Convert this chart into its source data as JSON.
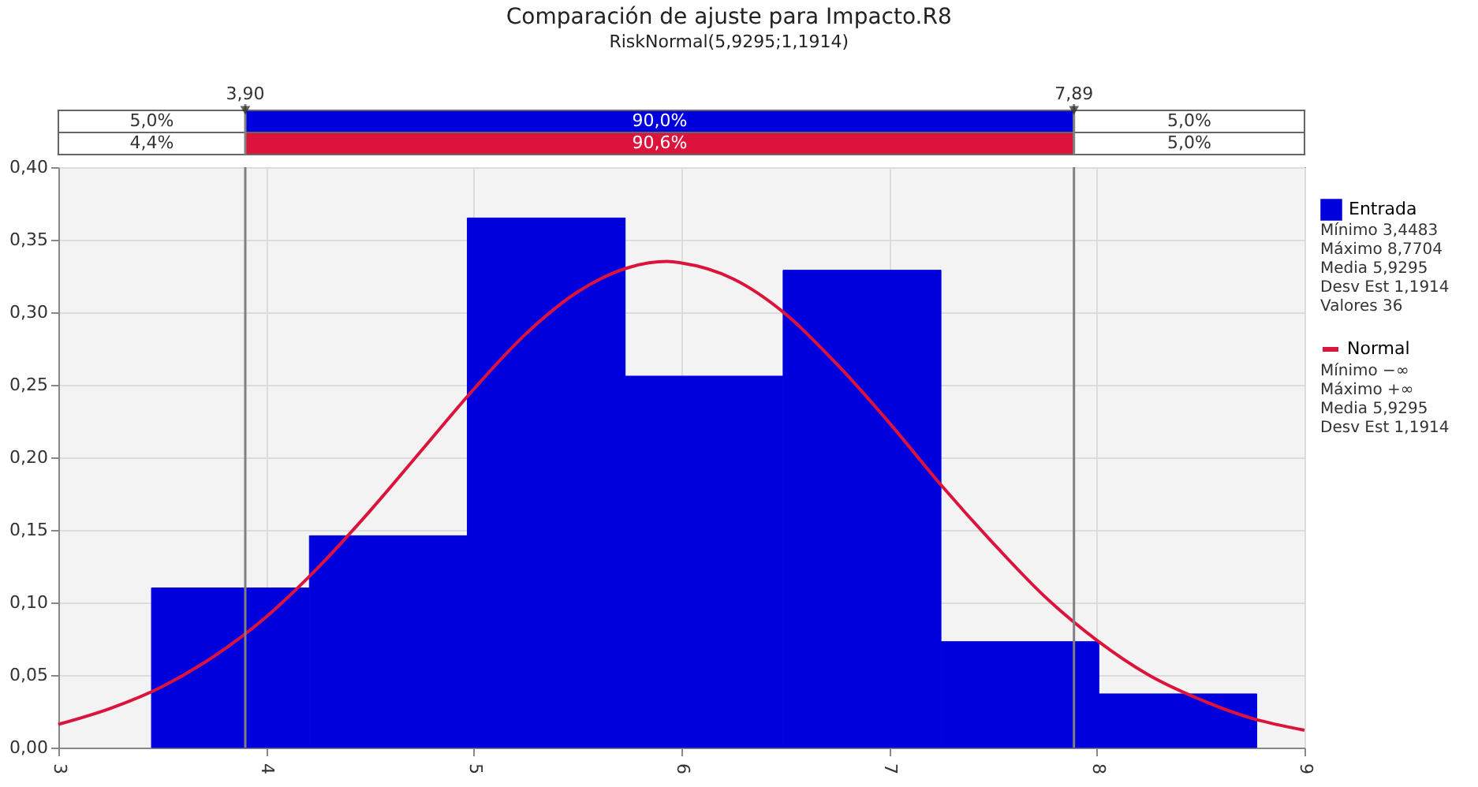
{
  "chart_data": {
    "type": "histogram",
    "title": "Comparación de ajuste para Impacto.R8",
    "subtitle": "RiskNormal(5,9295;1,1914)",
    "bins": [
      3.4483,
      4.2086,
      4.9689,
      5.7292,
      6.4895,
      7.2498,
      8.0101,
      8.7704
    ],
    "series": [
      {
        "name": "Entrada",
        "color": "#0000dd",
        "values": [
          0.11,
          0.146,
          0.365,
          0.256,
          0.329,
          0.073,
          0.037
        ]
      },
      {
        "name": "Normal",
        "type": "line",
        "color": "#dc143c",
        "x": [
          3,
          3.25,
          3.5,
          3.75,
          4,
          4.25,
          4.5,
          4.75,
          5,
          5.25,
          5.5,
          5.75,
          5.93,
          6,
          6.25,
          6.5,
          6.75,
          7,
          7.25,
          7.5,
          7.75,
          8,
          8.25,
          8.5,
          8.75,
          9
        ],
        "values": [
          0.016,
          0.027,
          0.042,
          0.063,
          0.09,
          0.124,
          0.163,
          0.205,
          0.247,
          0.285,
          0.314,
          0.331,
          0.335,
          0.334,
          0.323,
          0.299,
          0.264,
          0.224,
          0.181,
          0.141,
          0.104,
          0.074,
          0.05,
          0.033,
          0.02,
          0.012
        ]
      }
    ],
    "xlim": [
      3,
      9
    ],
    "xticks": [
      3,
      4,
      5,
      6,
      7,
      8,
      9
    ],
    "ylim": [
      0,
      0.4
    ],
    "yticks": [
      {
        "value": 0,
        "label": "0,00"
      },
      {
        "value": 0.05,
        "label": "0,05"
      },
      {
        "value": 0.1,
        "label": "0,10"
      },
      {
        "value": 0.15,
        "label": "0,15"
      },
      {
        "value": 0.2,
        "label": "0,20"
      },
      {
        "value": 0.25,
        "label": "0,25"
      },
      {
        "value": 0.3,
        "label": "0,30"
      },
      {
        "value": 0.35,
        "label": "0,35"
      },
      {
        "value": 0.4,
        "label": "0,40"
      }
    ],
    "ref_lines": [
      {
        "axis": "x",
        "value": 3.9,
        "label": "3,90",
        "color": "#808080"
      },
      {
        "axis": "x",
        "value": 7.89,
        "label": "7,89",
        "color": "#808080"
      }
    ],
    "annotations": [
      "5,0%",
      "90,0%",
      "5,0%",
      "4,4%",
      "90,6%",
      "5,0%",
      "Mínimo 3,4483",
      "Máximo 8,7704",
      "Media 5,9295",
      "Desv Est 1,1914",
      "Valores 36",
      "Mínimo −∞",
      "Máximo +∞",
      "Media 5,9295",
      "Desv Est 1,1914"
    ],
    "grid": true,
    "legend": "right"
  }
}
